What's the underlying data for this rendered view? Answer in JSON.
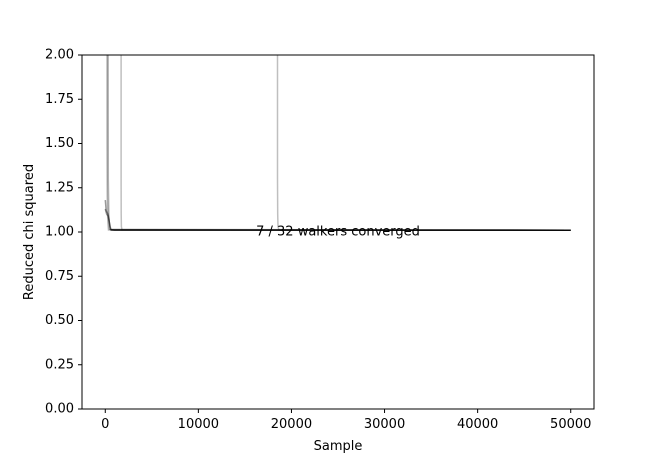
{
  "chart_data": {
    "type": "line",
    "title": "",
    "xlabel": "Sample",
    "ylabel": "Reduced chi squared",
    "xlim": [
      -2500,
      52500
    ],
    "ylim": [
      0,
      2.0
    ],
    "xticks": [
      0,
      10000,
      20000,
      30000,
      40000,
      50000
    ],
    "xtick_labels": [
      "0",
      "10000",
      "20000",
      "30000",
      "40000",
      "50000"
    ],
    "yticks": [
      0.0,
      0.25,
      0.5,
      0.75,
      1.0,
      1.25,
      1.5,
      1.75,
      2.0
    ],
    "ytick_labels": [
      "0.00",
      "0.25",
      "0.50",
      "0.75",
      "1.00",
      "1.25",
      "1.50",
      "1.75",
      "2.00"
    ],
    "grid": false,
    "line_color": "#000000",
    "annotation": {
      "text": "7 / 32 walkers converged",
      "x": 25000,
      "y": 1.0
    },
    "series": [
      {
        "opacity": 0.25,
        "x": [
          1700,
          1700,
          1710,
          1730,
          1800,
          50000
        ],
        "y": [
          2.05,
          1.3,
          1.1,
          1.03,
          1.012,
          1.01
        ]
      },
      {
        "opacity": 0.25,
        "x": [
          18500,
          18500,
          18520,
          18560,
          18650,
          50000
        ],
        "y": [
          2.05,
          1.3,
          1.1,
          1.03,
          1.012,
          1.01
        ]
      },
      {
        "opacity": 0.3,
        "x": [
          200,
          200,
          220,
          260,
          350,
          50000
        ],
        "y": [
          2.05,
          1.5,
          1.2,
          1.08,
          1.012,
          1.01
        ]
      },
      {
        "opacity": 0.3,
        "x": [
          300,
          310,
          330,
          380,
          480,
          50000
        ],
        "y": [
          2.05,
          1.6,
          1.3,
          1.1,
          1.015,
          1.01
        ]
      },
      {
        "opacity": 0.4,
        "x": [
          0,
          100,
          200,
          300,
          400,
          500,
          600,
          50000
        ],
        "y": [
          1.18,
          1.12,
          1.11,
          1.1,
          1.07,
          1.03,
          1.012,
          1.01
        ]
      },
      {
        "opacity": 0.4,
        "x": [
          0,
          150,
          300,
          450,
          600,
          50000
        ],
        "y": [
          1.13,
          1.1,
          1.09,
          1.05,
          1.012,
          1.01
        ]
      },
      {
        "opacity": 0.6,
        "x": [
          600,
          1000,
          5000,
          50000
        ],
        "y": [
          1.012,
          1.01,
          1.01,
          1.01
        ]
      }
    ]
  }
}
